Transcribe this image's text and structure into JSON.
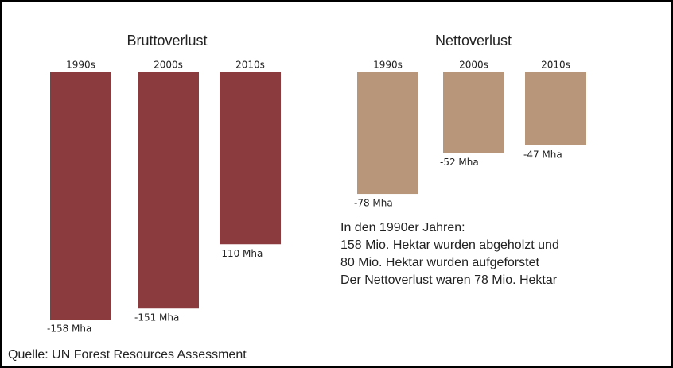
{
  "chart_data": [
    {
      "type": "bar",
      "title": "Bruttoverlust",
      "categories": [
        "1990s",
        "2000s",
        "2010s"
      ],
      "values": [
        -158,
        -151,
        -110
      ],
      "value_labels": [
        "-158 Mha",
        "-151 Mha",
        "-110 Mha"
      ],
      "color": "#8b3a3e"
    },
    {
      "type": "bar",
      "title": "Nettoverlust",
      "categories": [
        "1990s",
        "2000s",
        "2010s"
      ],
      "values": [
        -78,
        -52,
        -47
      ],
      "value_labels": [
        "-78 Mha",
        "-52 Mha",
        "-47 Mha"
      ],
      "color": "#b8967a",
      "annotations": [
        "In den 1990er Jahren:",
        "158 Mio. Hektar wurden abgeholzt  und",
        "80 Mio. Hektar wurden aufgeforstet",
        "Der Nettoverlust waren 78 Mio. Hektar"
      ]
    }
  ],
  "source": "Quelle: UN Forest Resources Assessment"
}
